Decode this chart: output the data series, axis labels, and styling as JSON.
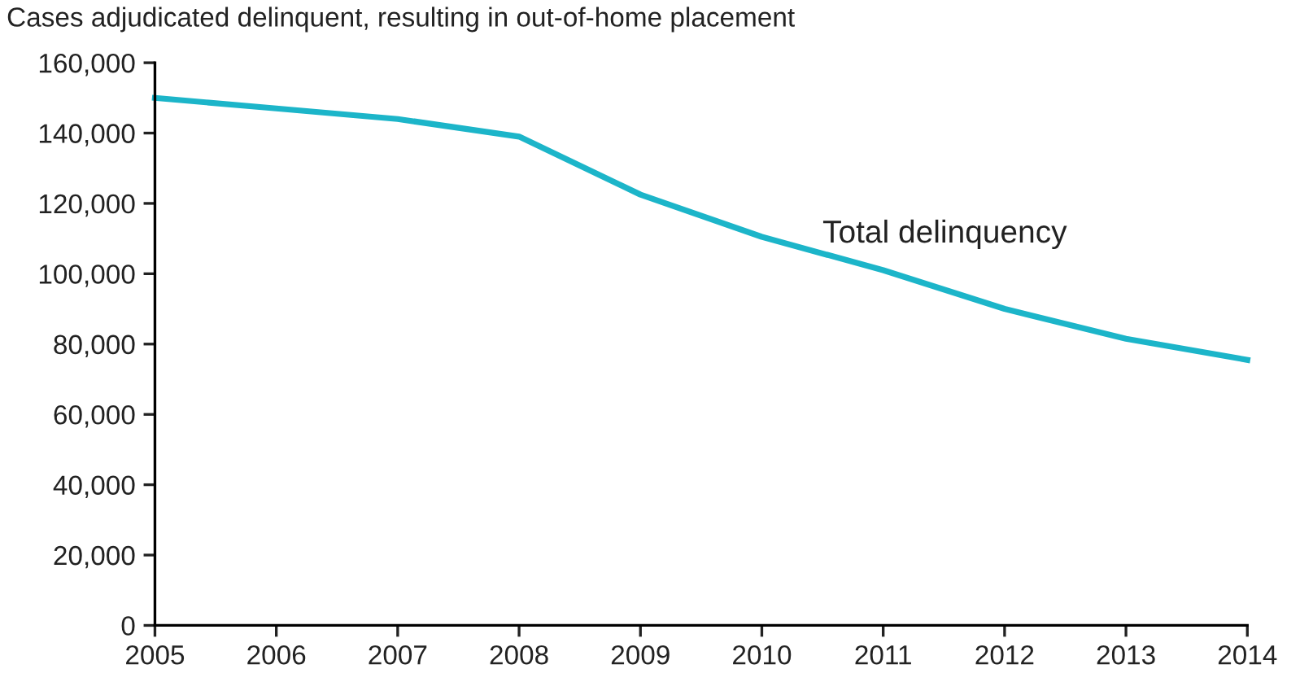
{
  "chart_data": {
    "type": "line",
    "title": "Cases adjudicated delinquent, resulting in out-of-home placement",
    "x": [
      2005,
      2006,
      2007,
      2008,
      2009,
      2010,
      2011,
      2012,
      2013,
      2014
    ],
    "series": [
      {
        "name": "Total delinquency",
        "color": "#1cb5c9",
        "values": [
          150000,
          147000,
          144000,
          139000,
          122500,
          110500,
          101000,
          90000,
          81500,
          75500
        ]
      }
    ],
    "xlim": [
      2005,
      2014
    ],
    "xticks": [
      2005,
      2006,
      2007,
      2008,
      2009,
      2010,
      2011,
      2012,
      2013,
      2014
    ],
    "ylim": [
      0,
      160000
    ],
    "yticks": [
      {
        "value": 0,
        "label": "0"
      },
      {
        "value": 20000,
        "label": "20,000"
      },
      {
        "value": 40000,
        "label": "40,000"
      },
      {
        "value": 60000,
        "label": "60,000"
      },
      {
        "value": 80000,
        "label": "80,000"
      },
      {
        "value": 100000,
        "label": "100,000"
      },
      {
        "value": 120000,
        "label": "120,000"
      },
      {
        "value": 140000,
        "label": "140,000"
      },
      {
        "value": 160000,
        "label": "160,000"
      }
    ],
    "grid": false,
    "legend": false,
    "marker": "none",
    "line_style": "solid"
  }
}
